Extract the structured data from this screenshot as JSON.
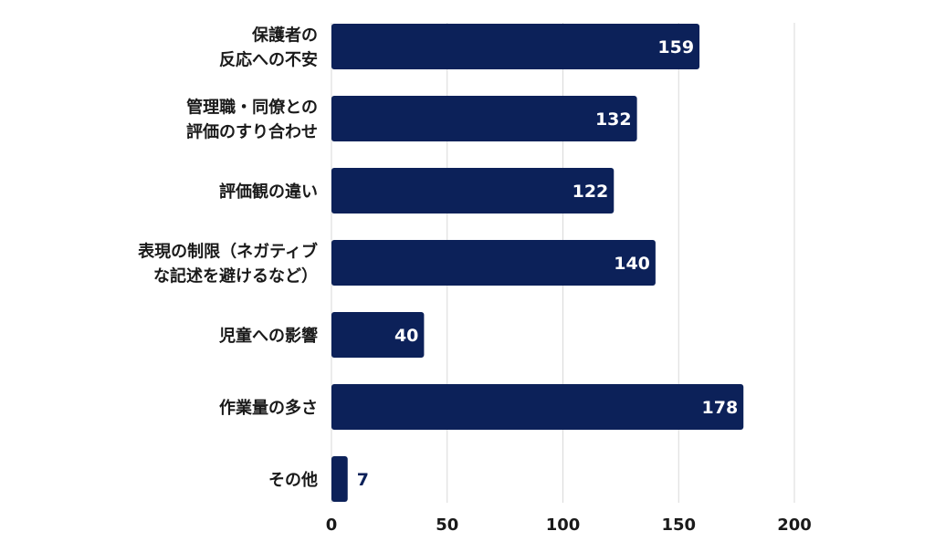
{
  "chart_data": {
    "type": "bar",
    "orientation": "horizontal",
    "categories": [
      [
        "保護者の",
        "反応への不安"
      ],
      [
        "管理職・同僚との",
        "評価のすり合わせ"
      ],
      [
        "評価観の違い"
      ],
      [
        "表現の制限（ネガティブ",
        "な記述を避けるなど）"
      ],
      [
        "児童への影響"
      ],
      [
        "作業量の多さ"
      ],
      [
        "その他"
      ]
    ],
    "values": [
      159,
      132,
      122,
      140,
      40,
      178,
      7
    ],
    "xlim": [
      0,
      200
    ],
    "xticks": [
      0,
      50,
      100,
      150,
      200
    ],
    "grid": true,
    "data_labels": true,
    "legend": "none",
    "colors": {
      "bar": "#0c2159",
      "label_inside": "#ffffff",
      "label_outside": "#0c2159",
      "grid": "#d9d9d9",
      "axis_text": "#1a1a1a"
    }
  }
}
